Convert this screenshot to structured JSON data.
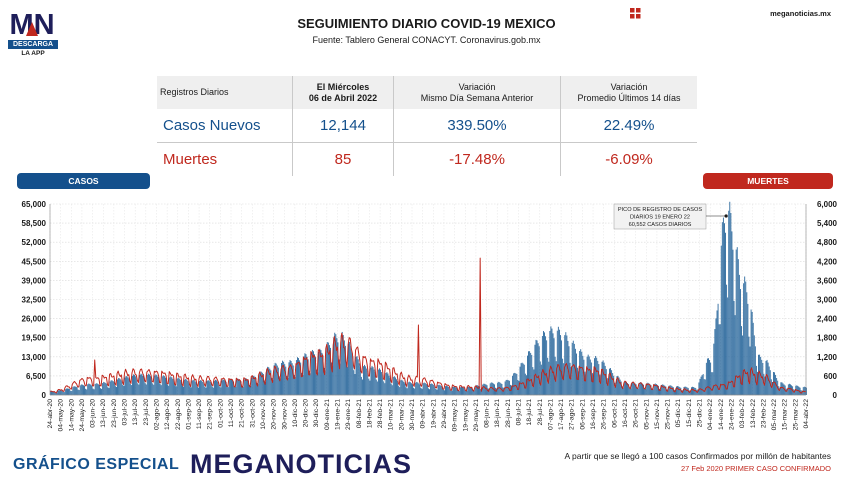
{
  "brand": {
    "logo_letters": "MN",
    "logo_label": "DESCARGA",
    "logo_sub": "LA APP",
    "site": "meganoticias.mx",
    "footer_left": "GRÁFICO ESPECIAL",
    "footer_brand": "MEGANOTICIAS",
    "colors": {
      "blue": "#14508c",
      "red": "#c0281e",
      "navy": "#1e1e5a"
    }
  },
  "header": {
    "title": "SEGUIMIENTO DIARIO COVID-19 MEXICO",
    "subtitle": "Fuente: Tablero General CONACYT. Coronavirus.gob.mx"
  },
  "stats_table": {
    "headers": [
      "Registros Diarios",
      "El Miércoles",
      "06 de Abril 2022",
      "Variación",
      "Mismo Día Semana Anterior",
      "Variación",
      "Promedio Últimos 14 días"
    ],
    "rows": [
      {
        "label": "Casos Nuevos",
        "value": "12,144",
        "var_week": "339.50%",
        "var_avg": "22.49%"
      },
      {
        "label": "Muertes",
        "value": "85",
        "var_week": "-17.48%",
        "var_avg": "-6.09%"
      }
    ]
  },
  "labels": {
    "casos": "CASOS",
    "muertes": "MUERTES"
  },
  "footer": {
    "note1": "A partir que se llegó a 100 casos Confirmados por millón de habitantes",
    "note2": "27 Feb 2020 PRIMER CASO CONFIRMADO"
  },
  "chart_data": {
    "type": "bar",
    "left_axis": {
      "series": "CASOS",
      "ticks": [
        "0",
        "6,500",
        "13,000",
        "19,500",
        "26,000",
        "32,500",
        "39,000",
        "45,500",
        "52,000",
        "58,500",
        "65,000"
      ],
      "ylim": [
        0,
        65000
      ]
    },
    "right_axis": {
      "series": "MUERTES",
      "ticks": [
        "0",
        "600",
        "1,200",
        "1,800",
        "2,400",
        "3,000",
        "3,600",
        "4,200",
        "4,800",
        "5,400",
        "6,000"
      ],
      "ylim": [
        0,
        6000
      ]
    },
    "x_ticks": [
      "24-abr-20",
      "04-may-20",
      "14-may-20",
      "24-may-20",
      "03-jun-20",
      "13-jun-20",
      "23-jun-20",
      "03-jul-20",
      "13-jul-20",
      "23-jul-20",
      "02-ago-20",
      "12-ago-20",
      "22-ago-20",
      "01-sep-20",
      "11-sep-20",
      "21-sep-20",
      "01-oct-20",
      "11-oct-20",
      "21-oct-20",
      "31-oct-20",
      "10-nov-20",
      "20-nov-20",
      "30-nov-20",
      "10-dic-20",
      "20-dic-20",
      "30-dic-20",
      "09-ene-21",
      "19-ene-21",
      "29-ene-21",
      "08-feb-21",
      "18-feb-21",
      "28-feb-21",
      "10-mar-21",
      "20-mar-21",
      "30-mar-21",
      "09-abr-21",
      "19-abr-21",
      "29-abr-21",
      "09-may-21",
      "19-may-21",
      "29-may-21",
      "08-jun-21",
      "18-jun-21",
      "28-jun-21",
      "08-jul-21",
      "18-jul-21",
      "28-jul-21",
      "07-ago-21",
      "17-ago-21",
      "27-ago-21",
      "06-sep-21",
      "16-sep-21",
      "26-sep-21",
      "06-oct-21",
      "16-oct-21",
      "26-oct-21",
      "05-nov-21",
      "15-nov-21",
      "25-nov-21",
      "05-dic-21",
      "15-dic-21",
      "25-dic-21",
      "04-ene-22",
      "14-ene-22",
      "24-ene-22",
      "03-feb-22",
      "13-feb-22",
      "23-feb-22",
      "05-mar-22",
      "15-mar-22",
      "25-mar-22",
      "04-abr-22"
    ],
    "casos_profile": [
      [
        "24-abr-20",
        1200
      ],
      [
        "01-jun-20",
        3500
      ],
      [
        "20-jul-20",
        6500
      ],
      [
        "15-sep-20",
        4500
      ],
      [
        "20-oct-20",
        5000
      ],
      [
        "01-dic-20",
        10500
      ],
      [
        "01-ene-21",
        14000
      ],
      [
        "20-ene-21",
        19500
      ],
      [
        "15-feb-21",
        9000
      ],
      [
        "30-mar-21",
        4000
      ],
      [
        "15-may-21",
        2500
      ],
      [
        "20-jun-21",
        4000
      ],
      [
        "10-ago-21",
        21000
      ],
      [
        "15-sep-21",
        12000
      ],
      [
        "20-oct-21",
        4000
      ],
      [
        "20-dic-21",
        2500
      ],
      [
        "04-ene-22",
        12000
      ],
      [
        "19-ene-22",
        60552
      ],
      [
        "05-feb-22",
        36000
      ],
      [
        "20-feb-22",
        12000
      ],
      [
        "15-mar-22",
        3500
      ],
      [
        "04-abr-22",
        2500
      ]
    ],
    "muertes_profile": [
      [
        "24-abr-20",
        100
      ],
      [
        "01-jun-20",
        500
      ],
      [
        "20-jul-20",
        700
      ],
      [
        "15-sep-20",
        500
      ],
      [
        "20-oct-20",
        450
      ],
      [
        "01-dic-20",
        800
      ],
      [
        "01-ene-21",
        1200
      ],
      [
        "25-ene-21",
        1600
      ],
      [
        "20-feb-21",
        1000
      ],
      [
        "30-mar-21",
        500
      ],
      [
        "15-may-21",
        250
      ],
      [
        "20-jun-21",
        200
      ],
      [
        "25-ago-21",
        850
      ],
      [
        "15-sep-21",
        750
      ],
      [
        "20-oct-21",
        350
      ],
      [
        "20-dic-21",
        150
      ],
      [
        "15-ene-22",
        300
      ],
      [
        "10-feb-22",
        700
      ],
      [
        "20-feb-22",
        600
      ],
      [
        "15-mar-22",
        200
      ],
      [
        "04-abr-22",
        100
      ]
    ],
    "muertes_spikes": [
      [
        "05-jun-20",
        1100
      ],
      [
        "05-abr-21",
        2200
      ],
      [
        "02-jun-21",
        4300
      ]
    ],
    "annotation": "PICO DE REGISTRO DE CASOS DIARIOS 19 ENERO 22 60,552 CASOS DIARIOS",
    "annotation_lines": [
      "PICO DE REGISTRO DE CASOS",
      "DIARIOS 19 ENERO 22",
      "60,552 CASOS DIARIOS"
    ]
  }
}
